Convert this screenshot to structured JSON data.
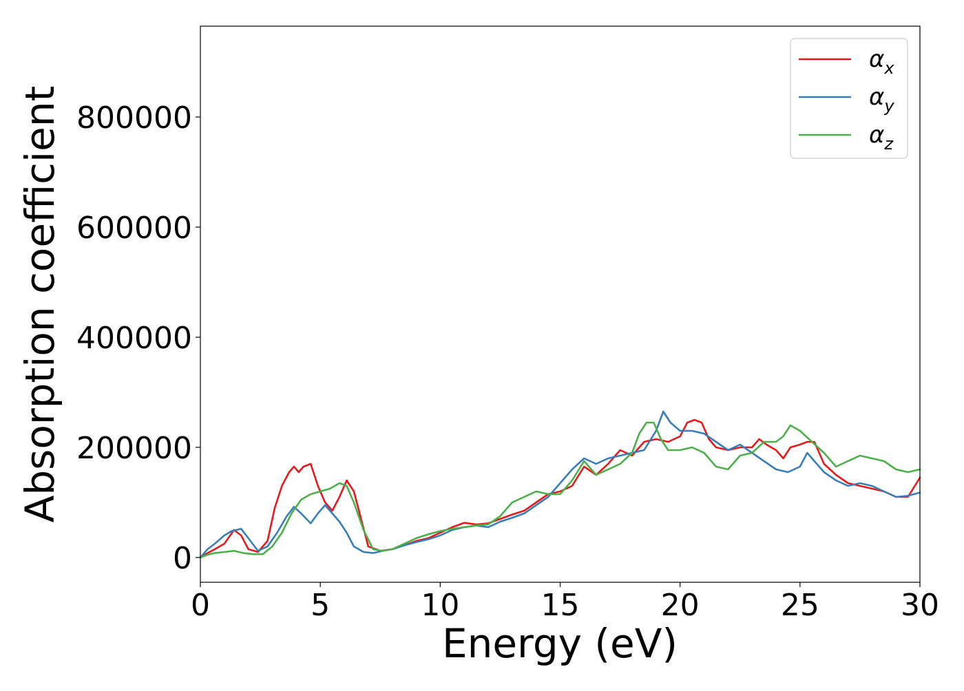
{
  "chart_data": {
    "type": "line",
    "title": "",
    "xlabel": "Energy (eV)",
    "ylabel": "Absorption coefficient",
    "xlim": [
      0,
      30
    ],
    "ylim": [
      -45000,
      965000
    ],
    "x_ticks": [
      "0",
      "5",
      "10",
      "15",
      "20",
      "25",
      "30"
    ],
    "x_tick_values": [
      0,
      5,
      10,
      15,
      20,
      25,
      30
    ],
    "y_ticks": [
      "0",
      "200000",
      "400000",
      "600000",
      "800000"
    ],
    "y_tick_values": [
      0,
      200000,
      400000,
      600000,
      800000
    ],
    "grid": false,
    "legend_position": "top-right",
    "series": [
      {
        "name": "α_x",
        "symbol": "α",
        "subscript": "x",
        "color": "#e41a1c",
        "x": [
          0,
          0.3,
          0.6,
          1.0,
          1.4,
          1.7,
          2.0,
          2.4,
          2.8,
          3.1,
          3.4,
          3.7,
          3.9,
          4.1,
          4.3,
          4.6,
          4.9,
          5.2,
          5.5,
          5.8,
          6.1,
          6.4,
          6.7,
          7.0,
          7.5,
          8.0,
          8.5,
          9.0,
          9.5,
          10.0,
          10.5,
          11.0,
          11.5,
          12.0,
          12.5,
          13.0,
          13.5,
          14.0,
          14.5,
          15.0,
          15.5,
          16.0,
          16.5,
          17.0,
          17.5,
          18.0,
          18.5,
          19.0,
          19.5,
          20.0,
          20.3,
          20.6,
          20.9,
          21.2,
          21.5,
          22.0,
          22.5,
          23.0,
          23.3,
          23.6,
          24.0,
          24.3,
          24.6,
          25.0,
          25.3,
          25.6,
          26.0,
          26.5,
          27.0,
          27.5,
          28.0,
          28.5,
          29.0,
          29.5,
          30.0
        ],
        "y": [
          0,
          8000,
          15000,
          25000,
          50000,
          40000,
          15000,
          10000,
          30000,
          90000,
          130000,
          155000,
          165000,
          155000,
          165000,
          170000,
          130000,
          100000,
          85000,
          110000,
          140000,
          120000,
          70000,
          20000,
          12000,
          15000,
          22000,
          30000,
          35000,
          45000,
          55000,
          63000,
          60000,
          62000,
          70000,
          78000,
          85000,
          100000,
          115000,
          120000,
          130000,
          165000,
          150000,
          170000,
          195000,
          185000,
          210000,
          215000,
          210000,
          220000,
          245000,
          250000,
          245000,
          215000,
          200000,
          195000,
          200000,
          200000,
          215000,
          205000,
          195000,
          180000,
          200000,
          205000,
          210000,
          210000,
          170000,
          150000,
          135000,
          130000,
          125000,
          120000,
          110000,
          110000,
          145000
        ]
      },
      {
        "name": "α_y",
        "symbol": "α",
        "subscript": "y",
        "color": "#377eb8",
        "x": [
          0,
          0.3,
          0.6,
          1.0,
          1.3,
          1.7,
          2.0,
          2.4,
          2.8,
          3.2,
          3.6,
          3.9,
          4.2,
          4.6,
          4.9,
          5.2,
          5.5,
          5.8,
          6.1,
          6.4,
          6.8,
          7.2,
          7.6,
          8.0,
          8.5,
          9.0,
          9.5,
          10.0,
          10.5,
          11.0,
          11.5,
          12.0,
          12.5,
          13.0,
          13.5,
          14.0,
          14.5,
          15.0,
          15.5,
          16.0,
          16.5,
          17.0,
          17.5,
          18.0,
          18.5,
          19.0,
          19.3,
          19.6,
          20.0,
          20.5,
          21.0,
          21.5,
          22.0,
          22.5,
          23.0,
          23.5,
          24.0,
          24.5,
          25.0,
          25.3,
          25.6,
          26.0,
          26.5,
          27.0,
          27.5,
          28.0,
          28.5,
          29.0,
          29.5,
          30.0
        ],
        "y": [
          0,
          15000,
          25000,
          40000,
          48000,
          52000,
          35000,
          12000,
          20000,
          45000,
          75000,
          92000,
          80000,
          62000,
          80000,
          95000,
          80000,
          65000,
          45000,
          20000,
          10000,
          8000,
          12000,
          15000,
          22000,
          28000,
          33000,
          40000,
          50000,
          55000,
          58000,
          55000,
          65000,
          72000,
          80000,
          95000,
          110000,
          135000,
          160000,
          180000,
          170000,
          180000,
          185000,
          190000,
          195000,
          230000,
          265000,
          245000,
          230000,
          230000,
          225000,
          210000,
          195000,
          205000,
          190000,
          175000,
          160000,
          155000,
          165000,
          190000,
          175000,
          155000,
          140000,
          130000,
          135000,
          130000,
          120000,
          110000,
          112000,
          118000
        ]
      },
      {
        "name": "α_z",
        "symbol": "α",
        "subscript": "z",
        "color": "#4daf4a",
        "x": [
          0,
          0.3,
          0.6,
          1.0,
          1.4,
          1.8,
          2.2,
          2.6,
          3.0,
          3.4,
          3.8,
          4.2,
          4.6,
          5.0,
          5.4,
          5.8,
          6.1,
          6.4,
          6.8,
          7.2,
          7.6,
          8.0,
          8.5,
          9.0,
          9.5,
          10.0,
          10.5,
          11.0,
          11.5,
          12.0,
          12.5,
          13.0,
          13.5,
          14.0,
          14.5,
          15.0,
          15.5,
          16.0,
          16.5,
          17.0,
          17.5,
          18.0,
          18.3,
          18.6,
          18.9,
          19.2,
          19.5,
          20.0,
          20.5,
          21.0,
          21.5,
          22.0,
          22.5,
          23.0,
          23.5,
          24.0,
          24.3,
          24.6,
          25.0,
          25.5,
          26.0,
          26.5,
          27.0,
          27.5,
          28.0,
          28.5,
          29.0,
          29.5,
          30.0
        ],
        "y": [
          0,
          5000,
          8000,
          10000,
          12000,
          8000,
          6000,
          6000,
          20000,
          45000,
          80000,
          105000,
          115000,
          120000,
          125000,
          135000,
          130000,
          100000,
          50000,
          15000,
          12000,
          15000,
          25000,
          35000,
          42000,
          48000,
          52000,
          55000,
          58000,
          60000,
          75000,
          100000,
          110000,
          120000,
          115000,
          115000,
          140000,
          175000,
          150000,
          160000,
          170000,
          190000,
          225000,
          245000,
          245000,
          215000,
          195000,
          195000,
          200000,
          190000,
          165000,
          160000,
          185000,
          190000,
          210000,
          210000,
          220000,
          240000,
          230000,
          210000,
          190000,
          165000,
          175000,
          185000,
          180000,
          175000,
          160000,
          155000,
          160000
        ]
      }
    ]
  }
}
